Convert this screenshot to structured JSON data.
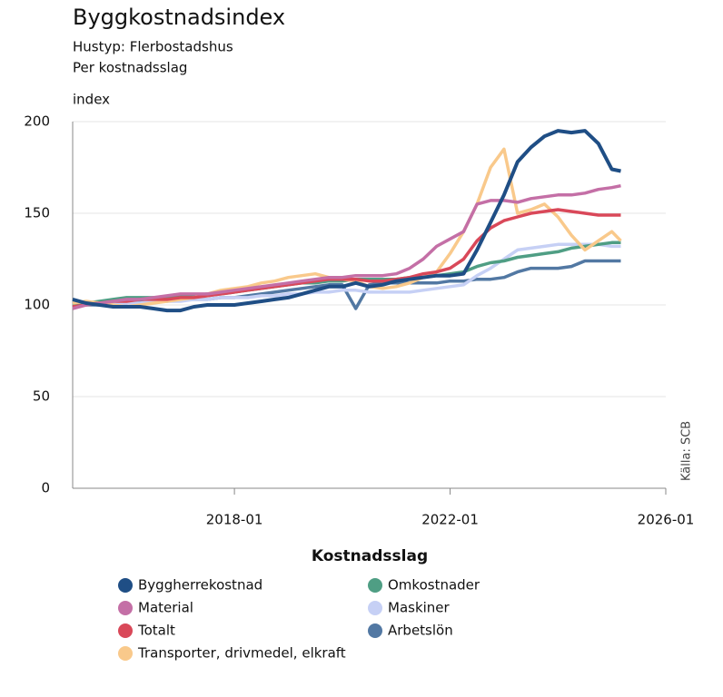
{
  "chart_data": {
    "type": "line",
    "title": "Byggkostnadsindex",
    "subtitle": [
      "Hustyp: Flerbostadshus",
      "Per kostnadsslag"
    ],
    "y_label": "index",
    "source": "Källa: SCB",
    "legend_title": "Kostnadsslag",
    "grid": true,
    "xlim": [
      "2015-01",
      "2026-01"
    ],
    "xticks": [
      "2018-01",
      "2022-01",
      "2026-01"
    ],
    "ylim": [
      0,
      200
    ],
    "yticks": [
      0,
      50,
      100,
      150,
      200
    ],
    "x": [
      "2015-01",
      "2015-04",
      "2015-07",
      "2015-10",
      "2016-01",
      "2016-04",
      "2016-07",
      "2016-10",
      "2017-01",
      "2017-04",
      "2017-07",
      "2017-10",
      "2018-01",
      "2018-04",
      "2018-07",
      "2018-10",
      "2019-01",
      "2019-04",
      "2019-07",
      "2019-10",
      "2020-01",
      "2020-04",
      "2020-07",
      "2020-10",
      "2021-01",
      "2021-04",
      "2021-07",
      "2021-10",
      "2022-01",
      "2022-04",
      "2022-07",
      "2022-10",
      "2023-01",
      "2023-04",
      "2023-07",
      "2023-10",
      "2024-01",
      "2024-04",
      "2024-07",
      "2024-10",
      "2025-01",
      "2025-03"
    ],
    "series": [
      {
        "name": "Byggherrekostnad",
        "color": "#1f4e85",
        "values": [
          103,
          101,
          100,
          99,
          99,
          99,
          98,
          97,
          97,
          99,
          100,
          100,
          100,
          101,
          102,
          103,
          104,
          106,
          108,
          110,
          110,
          112,
          110,
          111,
          113,
          114,
          115,
          116,
          116,
          117,
          130,
          145,
          160,
          178,
          186,
          192,
          195,
          194,
          195,
          188,
          174,
          173
        ]
      },
      {
        "name": "Material",
        "color": "#c46fa6",
        "values": [
          98,
          100,
          101,
          102,
          103,
          103,
          104,
          105,
          106,
          106,
          106,
          107,
          108,
          109,
          110,
          111,
          112,
          113,
          114,
          115,
          115,
          116,
          116,
          116,
          117,
          120,
          125,
          132,
          136,
          140,
          155,
          157,
          157,
          156,
          158,
          159,
          160,
          160,
          161,
          163,
          164,
          165
        ]
      },
      {
        "name": "Totalt",
        "color": "#d94859",
        "values": [
          99,
          100,
          101,
          102,
          102,
          103,
          103,
          103,
          104,
          104,
          105,
          106,
          107,
          108,
          109,
          110,
          111,
          112,
          113,
          114,
          114,
          114,
          113,
          113,
          114,
          115,
          117,
          118,
          120,
          125,
          135,
          142,
          146,
          148,
          150,
          151,
          152,
          151,
          150,
          149,
          149,
          149
        ]
      },
      {
        "name": "Transporter, drivmedel, elkraft",
        "color": "#f9c98b",
        "values": [
          101,
          102,
          101,
          100,
          99,
          100,
          101,
          102,
          103,
          104,
          106,
          108,
          109,
          110,
          112,
          113,
          115,
          116,
          117,
          115,
          114,
          113,
          110,
          109,
          110,
          112,
          115,
          118,
          128,
          140,
          155,
          175,
          185,
          150,
          152,
          155,
          148,
          138,
          130,
          135,
          140,
          135
        ]
      },
      {
        "name": "Omkostnader",
        "color": "#4f9e84",
        "values": [
          100,
          101,
          102,
          103,
          104,
          104,
          104,
          104,
          105,
          105,
          106,
          106,
          107,
          108,
          109,
          110,
          111,
          112,
          112,
          113,
          113,
          114,
          114,
          114,
          114,
          115,
          115,
          116,
          117,
          118,
          121,
          123,
          124,
          126,
          127,
          128,
          129,
          131,
          132,
          133,
          134,
          134
        ]
      },
      {
        "name": "Maskiner",
        "color": "#c6d0f5",
        "values": [
          100,
          101,
          101,
          101,
          101,
          101,
          102,
          102,
          102,
          103,
          103,
          104,
          104,
          104,
          105,
          105,
          106,
          106,
          107,
          107,
          108,
          108,
          107,
          107,
          107,
          107,
          108,
          109,
          110,
          111,
          116,
          120,
          125,
          130,
          131,
          132,
          133,
          133,
          133,
          133,
          132,
          132
        ]
      },
      {
        "name": "Arbetslön",
        "color": "#5278a3",
        "values": [
          99,
          100,
          100,
          101,
          101,
          102,
          102,
          102,
          103,
          103,
          103,
          104,
          104,
          105,
          106,
          107,
          108,
          109,
          110,
          111,
          111,
          98,
          111,
          112,
          112,
          112,
          112,
          112,
          113,
          113,
          114,
          114,
          115,
          118,
          120,
          120,
          120,
          121,
          124,
          124,
          124,
          124
        ]
      }
    ]
  }
}
